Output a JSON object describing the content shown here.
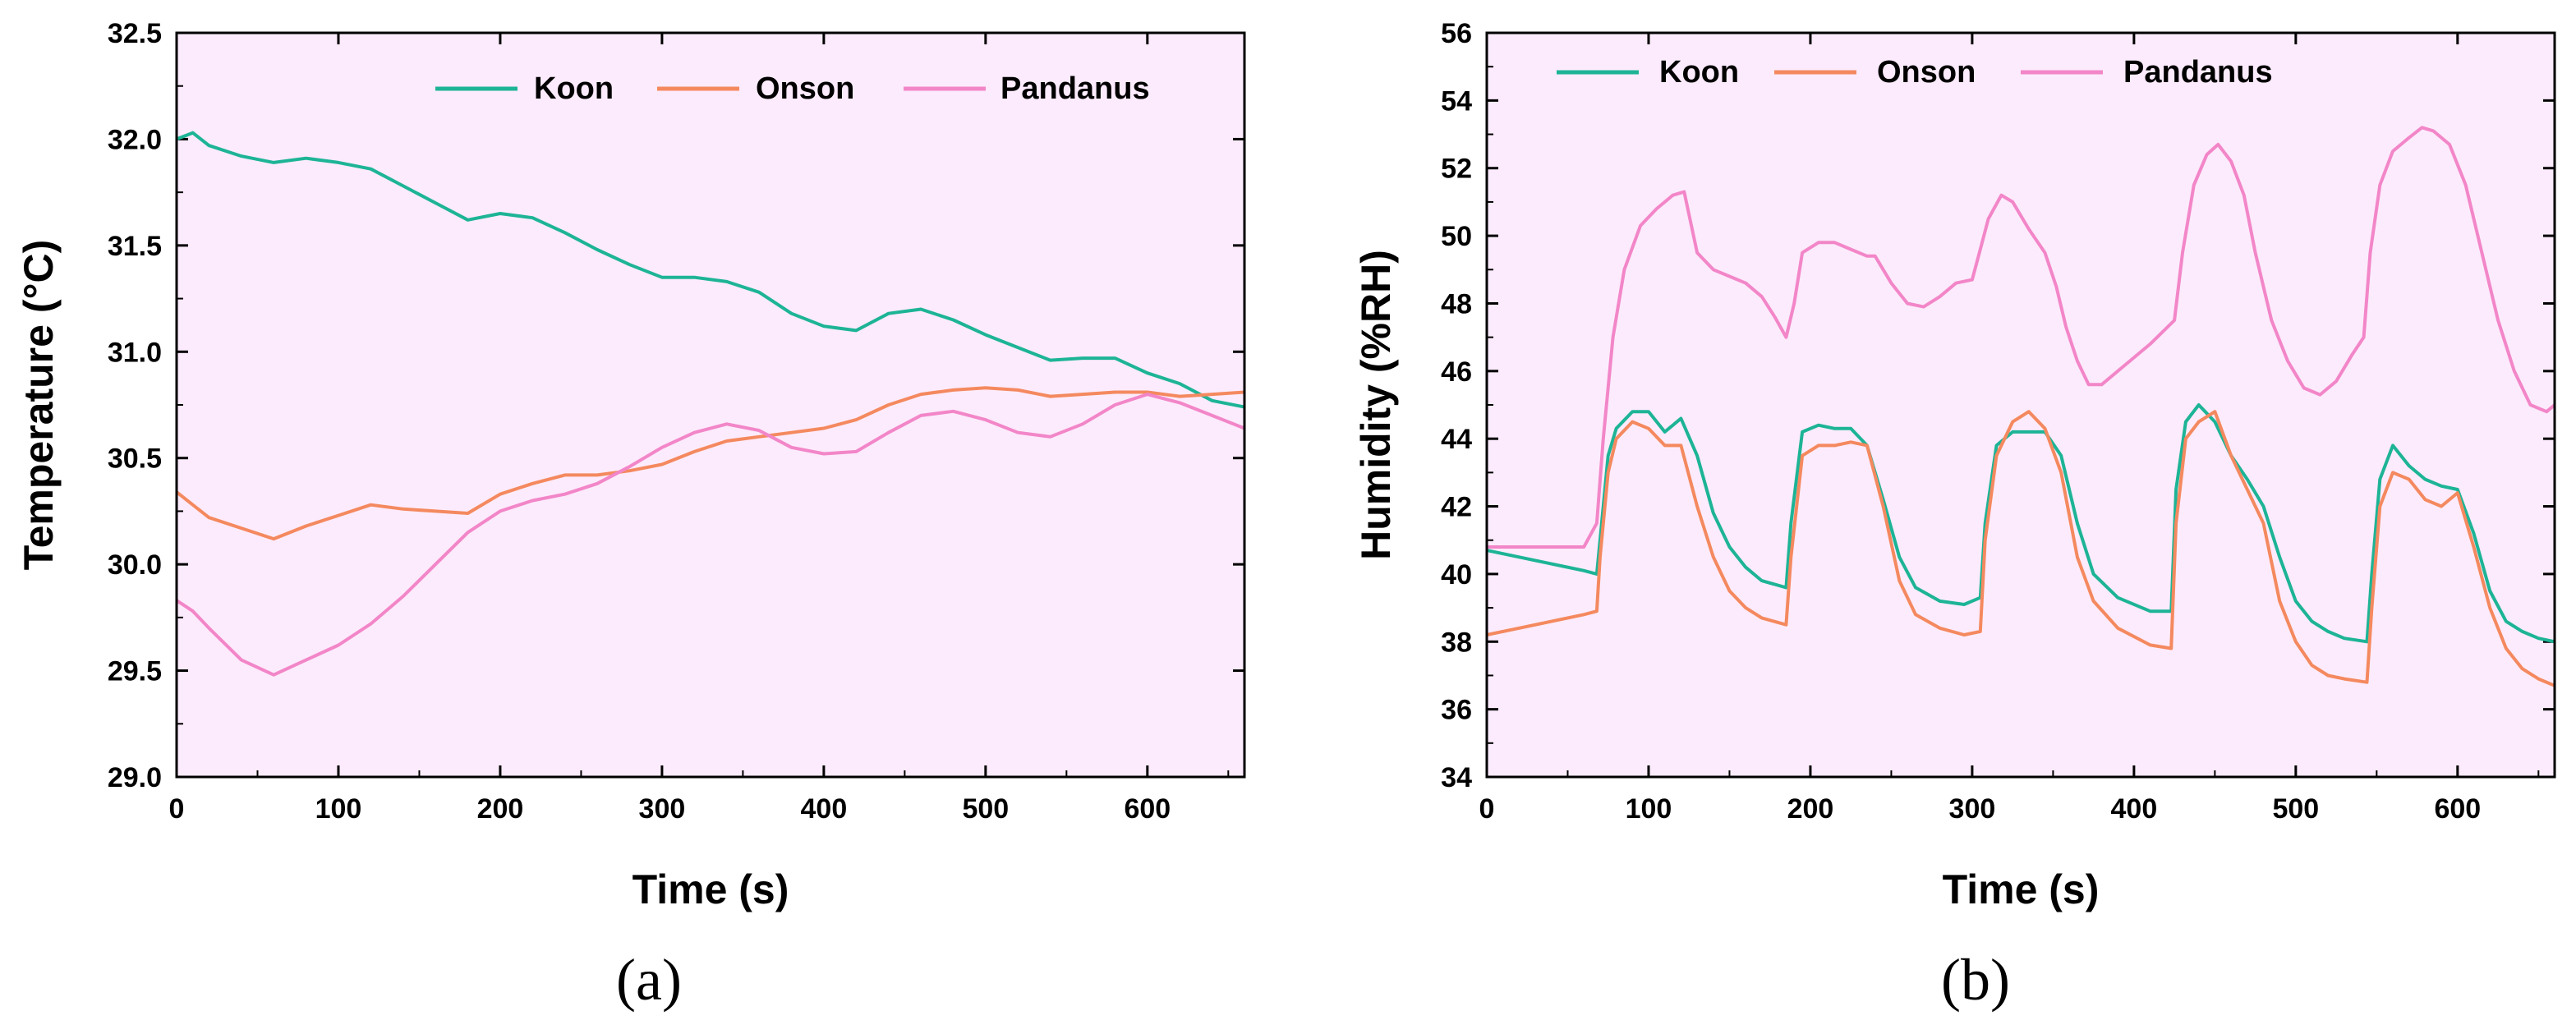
{
  "chart_data": [
    {
      "type": "line",
      "panel": "a",
      "caption": "(a)",
      "xlabel": "Time (s)",
      "ylabel": "Temperature (°C)",
      "xlim": [
        0,
        660
      ],
      "ylim": [
        29.0,
        32.5
      ],
      "xticks": [
        0,
        100,
        200,
        300,
        400,
        500,
        600
      ],
      "xtick_labels": [
        "0",
        "100",
        "200",
        "300",
        "400",
        "500",
        "600"
      ],
      "yticks": [
        29.0,
        29.5,
        30.0,
        30.5,
        31.0,
        31.5,
        32.0,
        32.5
      ],
      "ytick_labels": [
        "29.0",
        "29.5",
        "30.0",
        "30.5",
        "31.0",
        "31.5",
        "32.0",
        "32.5"
      ],
      "legend_position": "top-right",
      "background": "#fcebfc",
      "series": [
        {
          "name": "Koon",
          "color": "#1db496",
          "x": [
            0,
            10,
            20,
            40,
            60,
            80,
            100,
            120,
            140,
            160,
            180,
            200,
            220,
            240,
            260,
            280,
            300,
            320,
            340,
            360,
            380,
            400,
            420,
            440,
            460,
            480,
            500,
            520,
            540,
            560,
            580,
            600,
            620,
            640,
            660
          ],
          "y": [
            32.0,
            32.03,
            31.97,
            31.92,
            31.89,
            31.91,
            31.89,
            31.86,
            31.78,
            31.7,
            31.62,
            31.65,
            31.63,
            31.56,
            31.48,
            31.41,
            31.35,
            31.35,
            31.33,
            31.28,
            31.18,
            31.12,
            31.1,
            31.18,
            31.2,
            31.15,
            31.08,
            31.02,
            30.96,
            30.97,
            30.97,
            30.9,
            30.85,
            30.77,
            30.74
          ]
        },
        {
          "name": "Onson",
          "color": "#f4895f",
          "x": [
            0,
            10,
            20,
            40,
            60,
            80,
            100,
            120,
            140,
            160,
            180,
            200,
            220,
            240,
            260,
            280,
            300,
            320,
            340,
            360,
            380,
            400,
            420,
            440,
            460,
            480,
            500,
            520,
            540,
            560,
            580,
            600,
            620,
            640,
            660
          ],
          "y": [
            30.34,
            30.28,
            30.22,
            30.17,
            30.12,
            30.18,
            30.23,
            30.28,
            30.26,
            30.25,
            30.24,
            30.33,
            30.38,
            30.42,
            30.42,
            30.44,
            30.47,
            30.53,
            30.58,
            30.6,
            30.62,
            30.64,
            30.68,
            30.75,
            30.8,
            30.82,
            30.83,
            30.82,
            30.79,
            30.8,
            30.81,
            30.81,
            30.79,
            30.8,
            30.81
          ]
        },
        {
          "name": "Pandanus",
          "color": "#f286c8",
          "x": [
            0,
            10,
            20,
            40,
            60,
            80,
            100,
            120,
            140,
            160,
            180,
            200,
            220,
            240,
            260,
            280,
            300,
            320,
            340,
            360,
            380,
            400,
            420,
            440,
            460,
            480,
            500,
            520,
            540,
            560,
            580,
            600,
            620,
            640,
            660
          ],
          "y": [
            29.83,
            29.78,
            29.7,
            29.55,
            29.48,
            29.55,
            29.62,
            29.72,
            29.85,
            30.0,
            30.15,
            30.25,
            30.3,
            30.33,
            30.38,
            30.46,
            30.55,
            30.62,
            30.66,
            30.63,
            30.55,
            30.52,
            30.53,
            30.62,
            30.7,
            30.72,
            30.68,
            30.62,
            30.6,
            30.66,
            30.75,
            30.8,
            30.76,
            30.7,
            30.64
          ]
        }
      ]
    },
    {
      "type": "line",
      "panel": "b",
      "caption": "(b)",
      "xlabel": "Time (s)",
      "ylabel": "Humidity (%RH)",
      "xlim": [
        0,
        660
      ],
      "ylim": [
        34,
        56
      ],
      "xticks": [
        0,
        100,
        200,
        300,
        400,
        500,
        600
      ],
      "xtick_labels": [
        "0",
        "100",
        "200",
        "300",
        "400",
        "500",
        "600"
      ],
      "yticks": [
        34,
        36,
        38,
        40,
        42,
        44,
        46,
        48,
        50,
        52,
        54,
        56
      ],
      "ytick_labels": [
        "34",
        "36",
        "38",
        "40",
        "42",
        "44",
        "46",
        "48",
        "50",
        "52",
        "54",
        "56"
      ],
      "legend_position": "top",
      "background": "#fcebfc",
      "series": [
        {
          "name": "Koon",
          "color": "#1db496",
          "x": [
            0,
            20,
            40,
            60,
            68,
            70,
            75,
            80,
            90,
            100,
            110,
            120,
            130,
            140,
            150,
            160,
            170,
            185,
            188,
            195,
            205,
            215,
            225,
            235,
            245,
            255,
            265,
            280,
            295,
            305,
            308,
            315,
            325,
            335,
            345,
            355,
            365,
            375,
            390,
            410,
            423,
            426,
            432,
            440,
            450,
            460,
            470,
            480,
            490,
            500,
            510,
            520,
            530,
            544,
            547,
            552,
            560,
            570,
            580,
            590,
            600,
            610,
            620,
            630,
            640,
            650,
            660
          ],
          "y": [
            40.7,
            40.5,
            40.3,
            40.1,
            40.0,
            41.0,
            43.5,
            44.3,
            44.8,
            44.8,
            44.2,
            44.6,
            43.5,
            41.8,
            40.8,
            40.2,
            39.8,
            39.6,
            41.5,
            44.2,
            44.4,
            44.3,
            44.3,
            43.8,
            42.2,
            40.5,
            39.6,
            39.2,
            39.1,
            39.3,
            41.5,
            43.8,
            44.2,
            44.2,
            44.2,
            43.5,
            41.5,
            40.0,
            39.3,
            38.9,
            38.9,
            42.5,
            44.5,
            45.0,
            44.5,
            43.5,
            42.8,
            42.0,
            40.5,
            39.2,
            38.6,
            38.3,
            38.1,
            38.0,
            40.0,
            42.8,
            43.8,
            43.2,
            42.8,
            42.6,
            42.5,
            41.2,
            39.5,
            38.6,
            38.3,
            38.1,
            38.0
          ]
        },
        {
          "name": "Onson",
          "color": "#f4895f",
          "x": [
            0,
            20,
            40,
            60,
            68,
            70,
            75,
            80,
            90,
            100,
            110,
            120,
            130,
            140,
            150,
            160,
            170,
            185,
            188,
            195,
            205,
            215,
            225,
            235,
            245,
            255,
            265,
            280,
            295,
            305,
            308,
            315,
            325,
            335,
            345,
            355,
            365,
            375,
            390,
            410,
            423,
            426,
            432,
            440,
            450,
            460,
            470,
            480,
            490,
            500,
            510,
            520,
            530,
            544,
            547,
            552,
            560,
            570,
            580,
            590,
            600,
            610,
            620,
            630,
            640,
            650,
            660
          ],
          "y": [
            38.2,
            38.4,
            38.6,
            38.8,
            38.9,
            40.5,
            43.0,
            44.0,
            44.5,
            44.3,
            43.8,
            43.8,
            42.0,
            40.5,
            39.5,
            39.0,
            38.7,
            38.5,
            40.5,
            43.5,
            43.8,
            43.8,
            43.9,
            43.8,
            42.0,
            39.8,
            38.8,
            38.4,
            38.2,
            38.3,
            41.0,
            43.5,
            44.5,
            44.8,
            44.3,
            43.0,
            40.5,
            39.2,
            38.4,
            37.9,
            37.8,
            41.5,
            44.0,
            44.5,
            44.8,
            43.5,
            42.5,
            41.5,
            39.2,
            38.0,
            37.3,
            37.0,
            36.9,
            36.8,
            39.0,
            42.0,
            43.0,
            42.8,
            42.2,
            42.0,
            42.4,
            40.8,
            39.0,
            37.8,
            37.2,
            36.9,
            36.7
          ]
        },
        {
          "name": "Pandanus",
          "color": "#f286c8",
          "x": [
            0,
            20,
            40,
            60,
            68,
            72,
            78,
            85,
            95,
            105,
            115,
            122,
            130,
            140,
            150,
            160,
            170,
            178,
            185,
            190,
            195,
            205,
            215,
            225,
            235,
            240,
            250,
            260,
            270,
            280,
            290,
            300,
            305,
            310,
            318,
            325,
            335,
            345,
            352,
            358,
            365,
            372,
            380,
            395,
            410,
            425,
            430,
            437,
            445,
            452,
            460,
            468,
            475,
            485,
            495,
            505,
            515,
            525,
            535,
            542,
            546,
            552,
            560,
            570,
            578,
            585,
            595,
            605,
            615,
            625,
            635,
            645,
            655,
            660
          ],
          "y": [
            40.8,
            40.8,
            40.8,
            40.8,
            41.5,
            44.0,
            47.0,
            49.0,
            50.3,
            50.8,
            51.2,
            51.3,
            49.5,
            49.0,
            48.8,
            48.6,
            48.2,
            47.6,
            47.0,
            48.0,
            49.5,
            49.8,
            49.8,
            49.6,
            49.4,
            49.4,
            48.6,
            48.0,
            47.9,
            48.2,
            48.6,
            48.7,
            49.6,
            50.5,
            51.2,
            51.0,
            50.2,
            49.5,
            48.5,
            47.3,
            46.3,
            45.6,
            45.6,
            46.2,
            46.8,
            47.5,
            49.5,
            51.5,
            52.4,
            52.7,
            52.2,
            51.2,
            49.5,
            47.5,
            46.3,
            45.5,
            45.3,
            45.7,
            46.5,
            47.0,
            49.5,
            51.5,
            52.5,
            52.9,
            53.2,
            53.1,
            52.7,
            51.5,
            49.5,
            47.5,
            46.0,
            45.0,
            44.8,
            45.0
          ]
        }
      ]
    }
  ]
}
